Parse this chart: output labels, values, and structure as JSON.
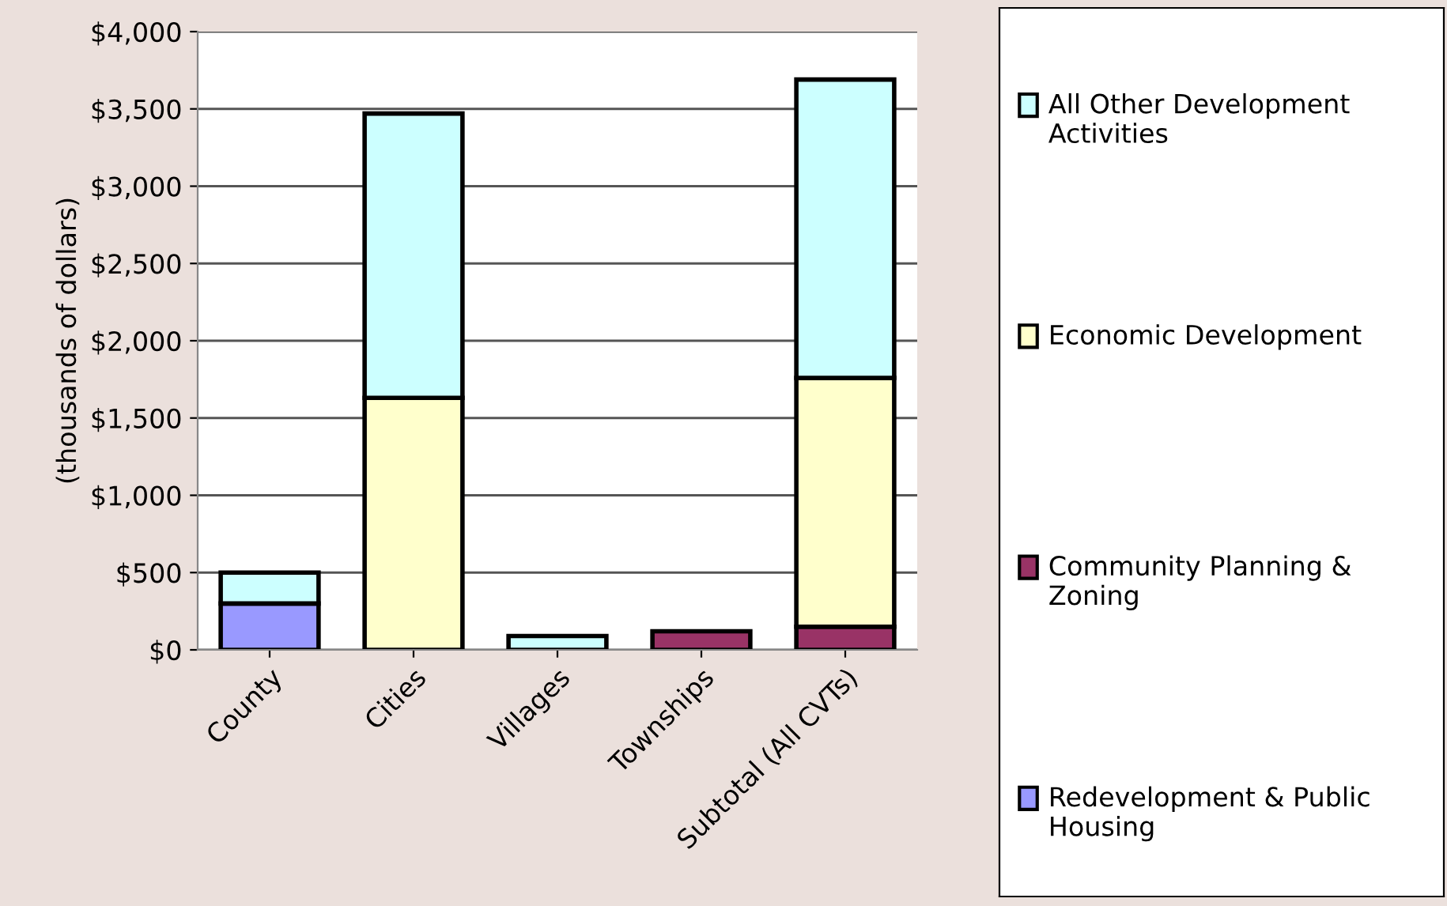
{
  "chart_data": {
    "type": "bar",
    "stacked": true,
    "ylabel": "(thousands of dollars)",
    "categories": [
      "County",
      "Cities",
      "Villages",
      "Townships",
      "Subtotal (All CVTs)"
    ],
    "series": [
      {
        "name": "Redevelopment & Public Housing",
        "color": "#9999ff",
        "values": [
          300,
          0,
          0,
          0,
          0
        ]
      },
      {
        "name": "Community Planning & Zoning",
        "color": "#993366",
        "values": [
          0,
          null,
          0,
          120,
          150
        ]
      },
      {
        "name": "Economic Development",
        "color": "#ffffcc",
        "values": [
          0,
          1630,
          0,
          0,
          1610
        ]
      },
      {
        "name": "All Other Development Activities",
        "color": "#ccffff",
        "values": [
          200,
          1840,
          90,
          0,
          1930
        ]
      }
    ],
    "ylim": [
      0,
      4000
    ],
    "yticks": [
      {
        "value": 0,
        "label": "$0"
      },
      {
        "value": 500,
        "label": "$500"
      },
      {
        "value": 1000,
        "label": "$1,000"
      },
      {
        "value": 1500,
        "label": "$1,500"
      },
      {
        "value": 2000,
        "label": "$2,000"
      },
      {
        "value": 2500,
        "label": "$2,500"
      },
      {
        "value": 3000,
        "label": "$3,000"
      },
      {
        "value": 3500,
        "label": "$3,500"
      },
      {
        "value": 4000,
        "label": "$4,000"
      }
    ],
    "grid": "y",
    "legend": "right"
  }
}
